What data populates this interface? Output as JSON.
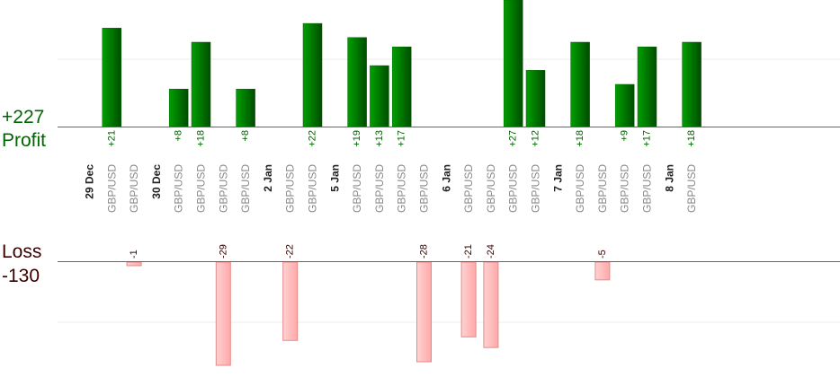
{
  "summary": {
    "profit_total": "+227",
    "profit_label": "Profit",
    "loss_label": "Loss",
    "loss_total": "-130"
  },
  "colors": {
    "profit_bar": "#006400",
    "profit_text": "#006400",
    "loss_bar": "#ffb6b6",
    "loss_text": "#3a0000",
    "symbol_text": "#888888",
    "date_text": "#222222"
  },
  "chart_data": {
    "type": "bar",
    "title": "",
    "profit_axis_max": 27,
    "loss_axis_max": 29,
    "columns": [
      {
        "label": "29 Dec",
        "kind": "date"
      },
      {
        "label": "GBP/USD",
        "kind": "trade",
        "value": 21
      },
      {
        "label": "GBP/USD",
        "kind": "trade",
        "value": -1
      },
      {
        "label": "30 Dec",
        "kind": "date"
      },
      {
        "label": "GBP/USD",
        "kind": "trade",
        "value": 8
      },
      {
        "label": "GBP/USD",
        "kind": "trade",
        "value": 18
      },
      {
        "label": "GBP/USD",
        "kind": "trade",
        "value": -29
      },
      {
        "label": "GBP/USD",
        "kind": "trade",
        "value": 8
      },
      {
        "label": "2 Jan",
        "kind": "date"
      },
      {
        "label": "GBP/USD",
        "kind": "trade",
        "value": -22
      },
      {
        "label": "GBP/USD",
        "kind": "trade",
        "value": 22
      },
      {
        "label": "5 Jan",
        "kind": "date"
      },
      {
        "label": "GBP/USD",
        "kind": "trade",
        "value": 19
      },
      {
        "label": "GBP/USD",
        "kind": "trade",
        "value": 13
      },
      {
        "label": "GBP/USD",
        "kind": "trade",
        "value": 17
      },
      {
        "label": "GBP/USD",
        "kind": "trade",
        "value": -28
      },
      {
        "label": "6 Jan",
        "kind": "date"
      },
      {
        "label": "GBP/USD",
        "kind": "trade",
        "value": -21
      },
      {
        "label": "GBP/USD",
        "kind": "trade",
        "value": -24
      },
      {
        "label": "GBP/USD",
        "kind": "trade",
        "value": 27
      },
      {
        "label": "GBP/USD",
        "kind": "trade",
        "value": 12
      },
      {
        "label": "7 Jan",
        "kind": "date"
      },
      {
        "label": "GBP/USD",
        "kind": "trade",
        "value": 18
      },
      {
        "label": "GBP/USD",
        "kind": "trade",
        "value": -5
      },
      {
        "label": "GBP/USD",
        "kind": "trade",
        "value": 9
      },
      {
        "label": "GBP/USD",
        "kind": "trade",
        "value": 17
      },
      {
        "label": "8 Jan",
        "kind": "date"
      },
      {
        "label": "GBP/USD",
        "kind": "trade",
        "value": 18
      }
    ]
  }
}
